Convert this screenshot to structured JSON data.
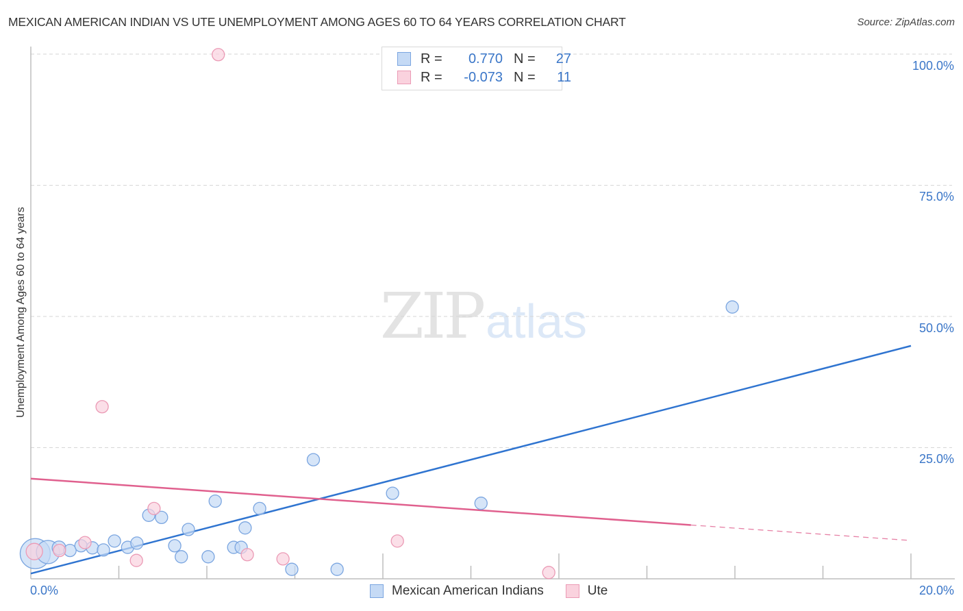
{
  "header": {
    "title": "MEXICAN AMERICAN INDIAN VS UTE UNEMPLOYMENT AMONG AGES 60 TO 64 YEARS CORRELATION CHART",
    "source": "Source: ZipAtlas.com"
  },
  "watermark": {
    "zip": "ZIP",
    "atlas": "atlas"
  },
  "legend": {
    "rows": [
      {
        "r_label": "R =",
        "r_value": "0.770",
        "n_label": "N =",
        "n_value": "27",
        "color": "#a9c8f2"
      },
      {
        "r_label": "R =",
        "r_value": "-0.073",
        "n_label": "N =",
        "n_value": "11",
        "color": "#f7bccd"
      }
    ]
  },
  "axes": {
    "ylabel": "Unemployment Among Ages 60 to 64 years",
    "y_ticks": [
      "100.0%",
      "75.0%",
      "50.0%",
      "25.0%"
    ],
    "x_ticks": [
      "0.0%",
      "20.0%"
    ]
  },
  "bottom_legend": {
    "items": [
      {
        "label": "Mexican American Indians",
        "color": "#a9c8f2"
      },
      {
        "label": "Ute",
        "color": "#f7bccd"
      }
    ]
  },
  "colors": {
    "blue_line": "#2f74d0",
    "pink_line": "#e0608e",
    "blue_fill": "#c5daf5",
    "blue_stroke": "#7aa5e0",
    "pink_fill": "#fad2de",
    "pink_stroke": "#eb9ab5",
    "tick_text": "#3a76c8"
  },
  "chart_data": {
    "type": "scatter",
    "title": "MEXICAN AMERICAN INDIAN VS UTE UNEMPLOYMENT AMONG AGES 60 TO 64 YEARS CORRELATION CHART",
    "xlabel": "",
    "ylabel": "Unemployment Among Ages 60 to 64 years",
    "xlim": [
      0,
      20
    ],
    "ylim": [
      0,
      100
    ],
    "x_ticks": [
      "0.0%",
      "20.0%"
    ],
    "y_ticks": [
      "25.0%",
      "50.0%",
      "75.0%",
      "100.0%"
    ],
    "grid": true,
    "legend_position": "bottom",
    "series": [
      {
        "name": "Mexican American Indians",
        "r": 0.77,
        "n": 27,
        "color": "#a9c8f2",
        "points": [
          {
            "x": 0.1,
            "y": 4.8,
            "size": 22
          },
          {
            "x": 0.39,
            "y": 5.1,
            "size": 17
          },
          {
            "x": 0.64,
            "y": 5.9,
            "size": 10
          },
          {
            "x": 0.89,
            "y": 5.4,
            "size": 9
          },
          {
            "x": 1.14,
            "y": 6.3,
            "size": 9
          },
          {
            "x": 1.4,
            "y": 5.9,
            "size": 9
          },
          {
            "x": 1.65,
            "y": 5.5,
            "size": 9
          },
          {
            "x": 1.9,
            "y": 7.2,
            "size": 9
          },
          {
            "x": 2.2,
            "y": 6.0,
            "size": 9
          },
          {
            "x": 2.41,
            "y": 6.8,
            "size": 9
          },
          {
            "x": 2.68,
            "y": 12.1,
            "size": 9
          },
          {
            "x": 2.97,
            "y": 11.7,
            "size": 9
          },
          {
            "x": 3.27,
            "y": 6.3,
            "size": 9
          },
          {
            "x": 3.42,
            "y": 4.2,
            "size": 9
          },
          {
            "x": 3.58,
            "y": 9.4,
            "size": 9
          },
          {
            "x": 4.03,
            "y": 4.2,
            "size": 9
          },
          {
            "x": 4.19,
            "y": 14.8,
            "size": 9
          },
          {
            "x": 4.61,
            "y": 6.0,
            "size": 9
          },
          {
            "x": 4.78,
            "y": 6.0,
            "size": 9
          },
          {
            "x": 4.87,
            "y": 9.7,
            "size": 9
          },
          {
            "x": 5.2,
            "y": 13.4,
            "size": 9
          },
          {
            "x": 5.93,
            "y": 1.8,
            "size": 9
          },
          {
            "x": 6.42,
            "y": 22.7,
            "size": 9
          },
          {
            "x": 6.96,
            "y": 1.8,
            "size": 9
          },
          {
            "x": 8.22,
            "y": 16.3,
            "size": 9
          },
          {
            "x": 10.23,
            "y": 14.4,
            "size": 9
          },
          {
            "x": 15.94,
            "y": 51.8,
            "size": 9
          }
        ],
        "trendline": {
          "x0": 0,
          "y0": 1.0,
          "x1": 20,
          "y1": 44.4
        }
      },
      {
        "name": "Ute",
        "r": -0.073,
        "n": 11,
        "color": "#f7bccd",
        "points": [
          {
            "x": 0.08,
            "y": 5.2,
            "size": 12
          },
          {
            "x": 0.65,
            "y": 5.4,
            "size": 9
          },
          {
            "x": 1.23,
            "y": 6.9,
            "size": 9
          },
          {
            "x": 1.62,
            "y": 32.8,
            "size": 9
          },
          {
            "x": 2.4,
            "y": 3.5,
            "size": 9
          },
          {
            "x": 2.8,
            "y": 13.4,
            "size": 9
          },
          {
            "x": 4.26,
            "y": 99.9,
            "size": 9
          },
          {
            "x": 4.92,
            "y": 4.6,
            "size": 9
          },
          {
            "x": 5.73,
            "y": 3.8,
            "size": 9
          },
          {
            "x": 8.33,
            "y": 7.2,
            "size": 9
          },
          {
            "x": 11.77,
            "y": 1.2,
            "size": 9
          }
        ],
        "trendline": {
          "x0": 0,
          "y0": 19.1,
          "x1": 20,
          "y1": 7.3,
          "solid_until_x": 15.0
        }
      }
    ]
  }
}
